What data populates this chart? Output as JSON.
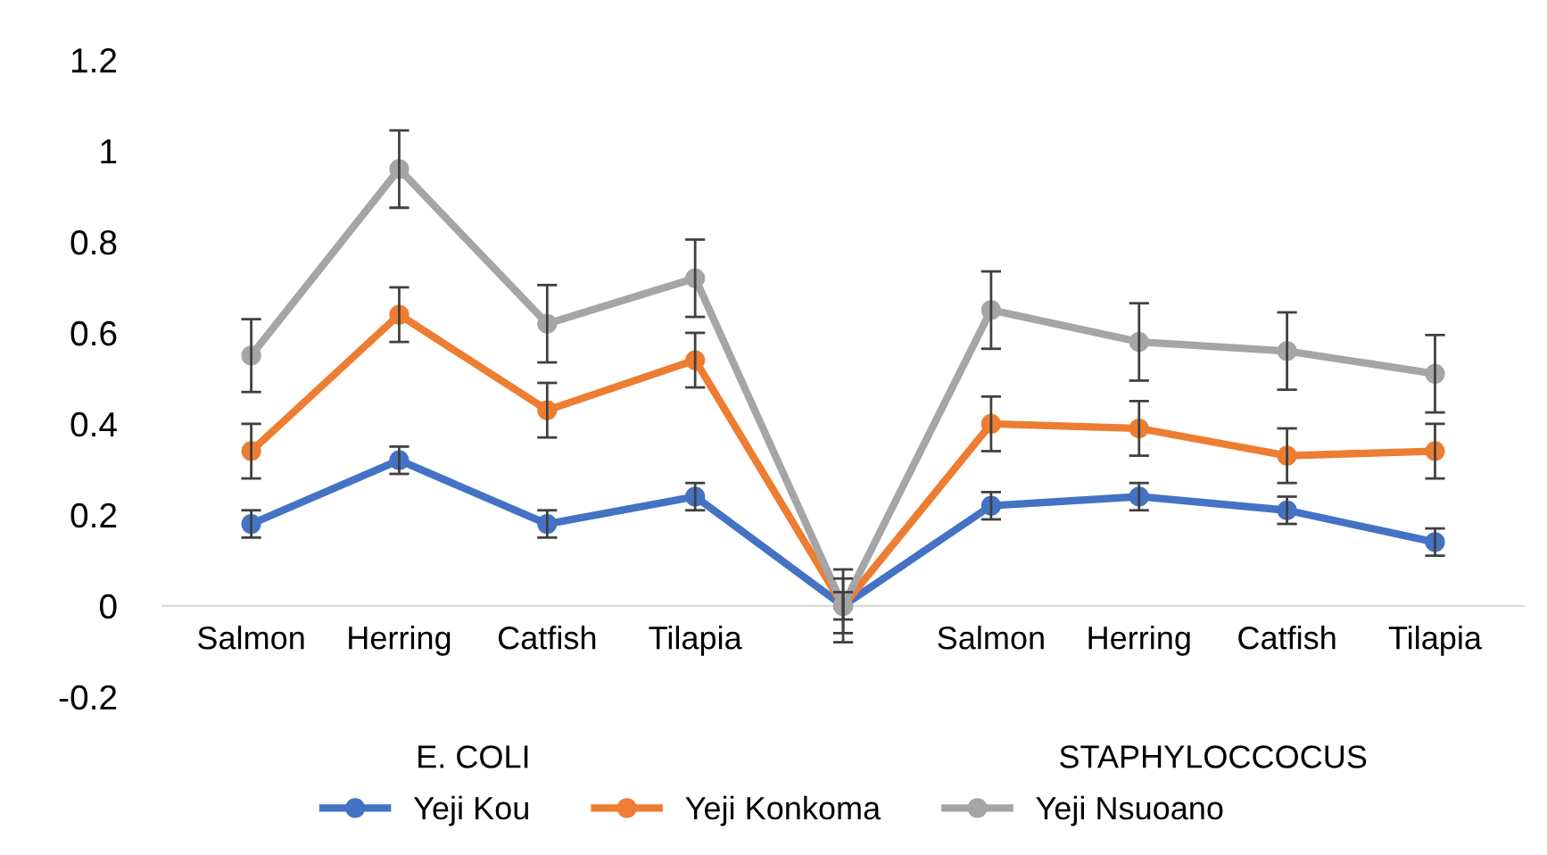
{
  "chart_data": {
    "type": "line",
    "categories": [
      "Salmon",
      "Herring",
      "Catfish",
      "Tilapia",
      null,
      "Salmon",
      "Herring",
      "Catfish",
      "Tilapia"
    ],
    "series": [
      {
        "name": "Yeji Kou",
        "color": "#4472c4",
        "values": [
          0.18,
          0.32,
          0.18,
          0.24,
          0,
          0.22,
          0.24,
          0.21,
          0.14
        ],
        "errors": [
          0.03,
          0.03,
          0.03,
          0.03,
          0.03,
          0.03,
          0.03,
          0.03,
          0.03
        ]
      },
      {
        "name": "Yeji Konkoma",
        "color": "#ed7d31",
        "values": [
          0.34,
          0.64,
          0.43,
          0.54,
          0,
          0.4,
          0.39,
          0.33,
          0.34
        ],
        "errors": [
          0.06,
          0.06,
          0.06,
          0.06,
          0.06,
          0.06,
          0.06,
          0.06,
          0.06
        ]
      },
      {
        "name": "Yeji Nsuoano",
        "color": "#a5a5a5",
        "values": [
          0.55,
          0.96,
          0.62,
          0.72,
          0,
          0.65,
          0.58,
          0.56,
          0.51
        ],
        "errors": [
          0.08,
          0.085,
          0.085,
          0.085,
          0.08,
          0.085,
          0.085,
          0.085,
          0.085
        ]
      }
    ],
    "annotations": [
      "E. COLI",
      "STAPHYLOCCOCUS"
    ],
    "ylim": [
      -0.2,
      1.2
    ],
    "yticks": [
      -0.2,
      0,
      0.2,
      0.4,
      0.6,
      0.8,
      1,
      1.2
    ],
    "grid": false,
    "legend": "bottom",
    "marker": "circle",
    "line_style": "solid"
  }
}
